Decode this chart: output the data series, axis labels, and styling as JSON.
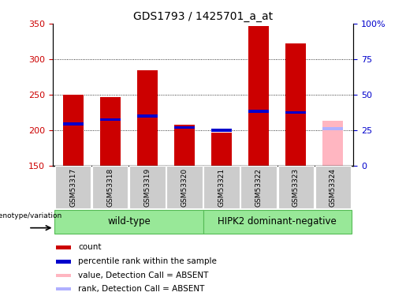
{
  "title": "GDS1793 / 1425701_a_at",
  "samples": [
    "GSM53317",
    "GSM53318",
    "GSM53319",
    "GSM53320",
    "GSM53321",
    "GSM53322",
    "GSM53323",
    "GSM53324"
  ],
  "bar_values": [
    250,
    247,
    285,
    208,
    197,
    347,
    322,
    213
  ],
  "bar_colors": [
    "#cc0000",
    "#cc0000",
    "#cc0000",
    "#cc0000",
    "#cc0000",
    "#cc0000",
    "#cc0000",
    "#ffb6c1"
  ],
  "rank_values": [
    209,
    215,
    220,
    204,
    200,
    227,
    225,
    202
  ],
  "rank_colors": [
    "#0000cc",
    "#0000cc",
    "#0000cc",
    "#0000cc",
    "#0000cc",
    "#0000cc",
    "#0000cc",
    "#b0b0ff"
  ],
  "ymin": 150,
  "ymax": 350,
  "yticks": [
    150,
    200,
    250,
    300,
    350
  ],
  "right_yticks": [
    0,
    25,
    50,
    75,
    100
  ],
  "grid_values": [
    200,
    250,
    300
  ],
  "group1_label": "wild-type",
  "group2_label": "HIPK2 dominant-negative",
  "genotype_label": "genotype/variation",
  "legend_items": [
    {
      "color": "#cc0000",
      "label": "count"
    },
    {
      "color": "#0000cc",
      "label": "percentile rank within the sample"
    },
    {
      "color": "#ffb6c1",
      "label": "value, Detection Call = ABSENT"
    },
    {
      "color": "#b0b0ff",
      "label": "rank, Detection Call = ABSENT"
    }
  ],
  "bar_width": 0.55,
  "left_tick_color": "#cc0000",
  "right_tick_color": "#0000cc"
}
